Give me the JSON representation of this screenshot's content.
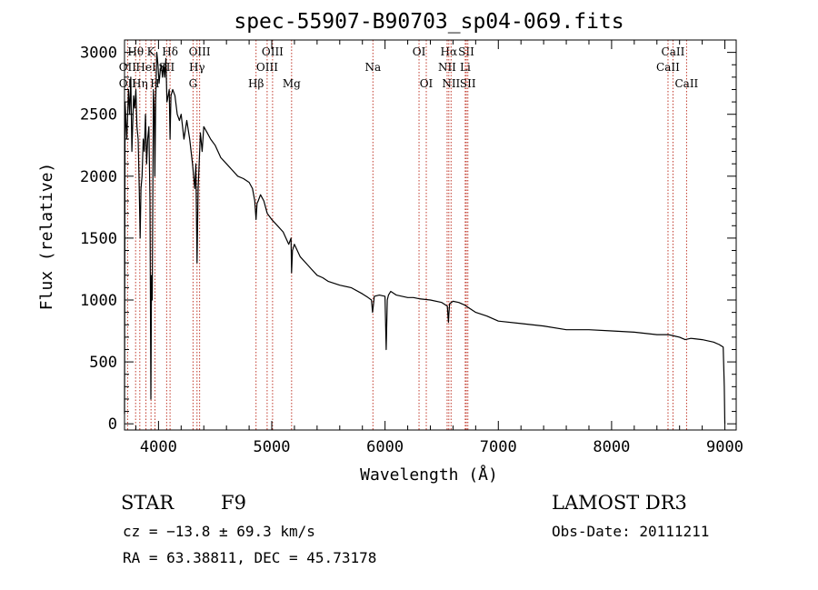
{
  "chart_data": {
    "type": "line",
    "title": "spec-55907-B90703_sp04-069.fits",
    "xlabel": "Wavelength (Å)",
    "ylabel": "Flux (relative)",
    "xlim": [
      3700,
      9100
    ],
    "ylim": [
      -50,
      3100
    ],
    "xticks": [
      4000,
      5000,
      6000,
      7000,
      8000,
      9000
    ],
    "yticks": [
      0,
      500,
      1000,
      1500,
      2000,
      2500,
      3000
    ],
    "series": [
      {
        "name": "flux",
        "x": [
          3700,
          3705,
          3720,
          3735,
          3745,
          3755,
          3765,
          3780,
          3790,
          3800,
          3810,
          3820,
          3830,
          3838,
          3845,
          3855,
          3865,
          3875,
          3885,
          3895,
          3905,
          3915,
          3925,
          3933,
          3938,
          3945,
          3955,
          3962,
          3968,
          3975,
          3985,
          3995,
          4005,
          4015,
          4025,
          4035,
          4045,
          4055,
          4065,
          4075,
          4085,
          4095,
          4102,
          4110,
          4125,
          4145,
          4165,
          4185,
          4200,
          4225,
          4250,
          4275,
          4300,
          4320,
          4330,
          4340,
          4350,
          4370,
          4385,
          4400,
          4430,
          4460,
          4500,
          4550,
          4600,
          4650,
          4700,
          4750,
          4800,
          4830,
          4850,
          4861,
          4870,
          4880,
          4900,
          4930,
          4960,
          5000,
          5050,
          5100,
          5150,
          5170,
          5175,
          5183,
          5200,
          5250,
          5300,
          5350,
          5400,
          5450,
          5500,
          5600,
          5700,
          5800,
          5850,
          5880,
          5890,
          5896,
          5905,
          5950,
          6000,
          6010,
          6020,
          6030,
          6050,
          6100,
          6150,
          6200,
          6250,
          6300,
          6400,
          6500,
          6550,
          6560,
          6563,
          6570,
          6600,
          6650,
          6700,
          6800,
          6900,
          7000,
          7200,
          7400,
          7600,
          7800,
          8000,
          8200,
          8400,
          8500,
          8550,
          8600,
          8650,
          8700,
          8800,
          8900,
          8950,
          8985,
          8995,
          9000
        ],
        "y": [
          80,
          2600,
          2300,
          2700,
          2500,
          2800,
          2200,
          2650,
          2550,
          2700,
          2400,
          2300,
          1900,
          1500,
          1900,
          2000,
          2300,
          2200,
          2500,
          2100,
          2300,
          2400,
          1800,
          200,
          1200,
          1000,
          2700,
          2550,
          2000,
          2600,
          3000,
          2900,
          2750,
          2850,
          2900,
          2800,
          2900,
          2800,
          2950,
          2600,
          2650,
          2700,
          2300,
          2650,
          2700,
          2650,
          2500,
          2450,
          2500,
          2300,
          2450,
          2300,
          2100,
          1900,
          2100,
          1300,
          1900,
          2350,
          2200,
          2400,
          2350,
          2300,
          2250,
          2150,
          2100,
          2050,
          2000,
          1980,
          1950,
          1900,
          1800,
          1650,
          1780,
          1800,
          1850,
          1800,
          1700,
          1650,
          1600,
          1550,
          1450,
          1500,
          1220,
          1400,
          1450,
          1350,
          1300,
          1250,
          1200,
          1180,
          1150,
          1120,
          1100,
          1050,
          1020,
          1000,
          900,
          950,
          1030,
          1040,
          1030,
          600,
          1000,
          1040,
          1070,
          1040,
          1030,
          1020,
          1020,
          1010,
          1000,
          980,
          950,
          820,
          880,
          970,
          990,
          980,
          960,
          900,
          870,
          830,
          810,
          790,
          760,
          760,
          750,
          740,
          720,
          720,
          710,
          700,
          680,
          690,
          680,
          660,
          640,
          620,
          300,
          0
        ]
      }
    ],
    "spectral_lines": [
      {
        "label": "Hθ",
        "x": 3798,
        "row": 1
      },
      {
        "label": "K",
        "x": 3934,
        "row": 1
      },
      {
        "label": "Hδ",
        "x": 4102,
        "row": 1
      },
      {
        "label": "OIII",
        "x": 4363,
        "row": 1
      },
      {
        "label": "OIII",
        "x": 5007,
        "row": 1
      },
      {
        "label": "OI",
        "x": 6300,
        "row": 1
      },
      {
        "label": "Hα",
        "x": 6563,
        "row": 1
      },
      {
        "label": "SII",
        "x": 6717,
        "row": 1
      },
      {
        "label": "CaII",
        "x": 8542,
        "row": 1
      },
      {
        "label": "OII",
        "x": 3727,
        "row": 2
      },
      {
        "label": "HeI",
        "x": 3889,
        "row": 2
      },
      {
        "label": "SII",
        "x": 4072,
        "row": 2
      },
      {
        "label": "Hγ",
        "x": 4340,
        "row": 2
      },
      {
        "label": "OIII",
        "x": 4959,
        "row": 2
      },
      {
        "label": "Na",
        "x": 5893,
        "row": 2
      },
      {
        "label": "NII",
        "x": 6548,
        "row": 2
      },
      {
        "label": "Li",
        "x": 6708,
        "row": 2
      },
      {
        "label": "CaII",
        "x": 8498,
        "row": 2
      },
      {
        "label": "OII",
        "x": 3727,
        "row": 3
      },
      {
        "label": "Hη",
        "x": 3835,
        "row": 3
      },
      {
        "label": "H",
        "x": 3969,
        "row": 3
      },
      {
        "label": "G",
        "x": 4305,
        "row": 3
      },
      {
        "label": "Hβ",
        "x": 4861,
        "row": 3
      },
      {
        "label": "Mg",
        "x": 5175,
        "row": 3
      },
      {
        "label": "OI",
        "x": 6364,
        "row": 3
      },
      {
        "label": "NII",
        "x": 6583,
        "row": 3
      },
      {
        "label": "SII",
        "x": 6731,
        "row": 3
      },
      {
        "label": "CaII",
        "x": 8662,
        "row": 3
      }
    ]
  },
  "info": {
    "object_class": "STAR",
    "subclass": "F9",
    "survey": "LAMOST DR3",
    "velocity": "cz = −13.8 ± 69.3 km/s",
    "obs_date": "Obs-Date: 20111211",
    "coords": "RA =  63.38811, DEC =  45.73178"
  }
}
